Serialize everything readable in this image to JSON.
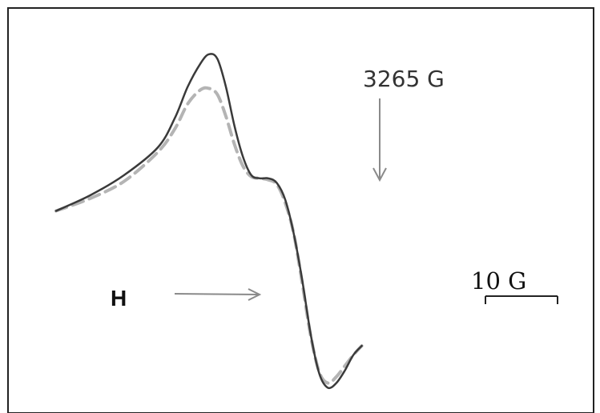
{
  "chart_data": {
    "type": "line",
    "title": "",
    "xlabel": "",
    "ylabel": "",
    "xlim": [
      3236,
      3296
    ],
    "ylim": [
      -1.25,
      1.0
    ],
    "grid": false,
    "legend": "none",
    "annotations": {
      "marker_label": "3265 G",
      "marker_x": 3265,
      "field_label": "H",
      "scale_label": "10 G",
      "scale_span": 10
    },
    "series": [
      {
        "style": "solid",
        "color": "#3a3a3a",
        "points": [
          [
            3236,
            -0.05
          ],
          [
            3240,
            0.05
          ],
          [
            3244,
            0.18
          ],
          [
            3248,
            0.36
          ],
          [
            3250,
            0.55
          ],
          [
            3251.5,
            0.75
          ],
          [
            3253,
            0.9
          ],
          [
            3254,
            0.96
          ],
          [
            3255,
            0.93
          ],
          [
            3256,
            0.75
          ],
          [
            3257,
            0.5
          ],
          [
            3258,
            0.3
          ],
          [
            3259,
            0.18
          ],
          [
            3260,
            0.16
          ],
          [
            3261,
            0.16
          ],
          [
            3262,
            0.13
          ],
          [
            3263,
            0.02
          ],
          [
            3264,
            -0.2
          ],
          [
            3265,
            -0.5
          ],
          [
            3266,
            -0.85
          ],
          [
            3267,
            -1.1
          ],
          [
            3268,
            -1.19
          ],
          [
            3269,
            -1.16
          ],
          [
            3270,
            -1.08
          ],
          [
            3271,
            -0.98
          ],
          [
            3272,
            -0.92
          ]
        ]
      },
      {
        "style": "dashed",
        "color": "#b4b4b4",
        "points": [
          [
            3236,
            -0.05
          ],
          [
            3240,
            0.03
          ],
          [
            3244,
            0.14
          ],
          [
            3248,
            0.33
          ],
          [
            3250,
            0.48
          ],
          [
            3251.5,
            0.64
          ],
          [
            3253,
            0.73
          ],
          [
            3254,
            0.74
          ],
          [
            3255,
            0.7
          ],
          [
            3256,
            0.56
          ],
          [
            3257,
            0.38
          ],
          [
            3258,
            0.24
          ],
          [
            3259,
            0.17
          ],
          [
            3260,
            0.16
          ],
          [
            3261,
            0.15
          ],
          [
            3262,
            0.12
          ],
          [
            3263,
            0.0
          ],
          [
            3264,
            -0.2
          ],
          [
            3265,
            -0.52
          ],
          [
            3266,
            -0.86
          ],
          [
            3267,
            -1.09
          ],
          [
            3268,
            -1.16
          ],
          [
            3269,
            -1.12
          ],
          [
            3270,
            -1.05
          ],
          [
            3271,
            -0.98
          ],
          [
            3272,
            -0.92
          ]
        ]
      }
    ]
  }
}
